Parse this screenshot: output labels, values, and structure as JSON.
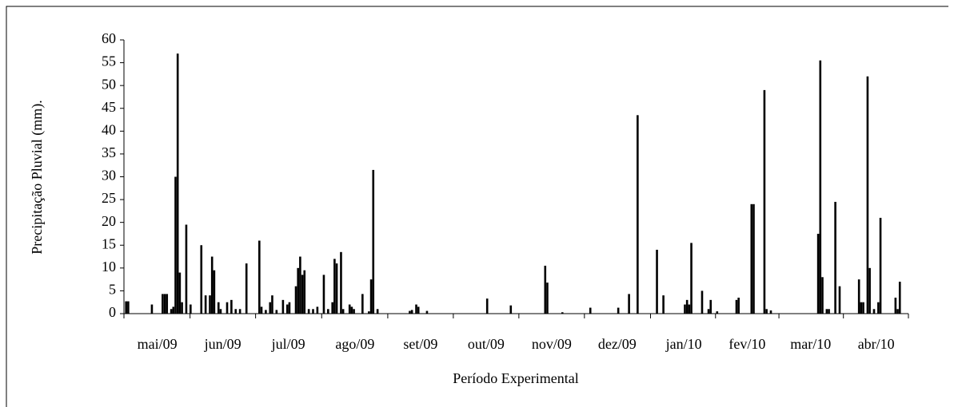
{
  "chart_data": {
    "type": "bar",
    "y_label": "Precipitação Pluvial (mm).",
    "x_label": "Período Experimental",
    "color": "#000000",
    "xlim": [
      0,
      365
    ],
    "xticks": [
      {
        "value": 15.5,
        "label": "mai/09"
      },
      {
        "value": 46,
        "label": "jun/09"
      },
      {
        "value": 76.5,
        "label": "jul/09"
      },
      {
        "value": 107.5,
        "label": "ago/09"
      },
      {
        "value": 138,
        "label": "set/09"
      },
      {
        "value": 168.5,
        "label": "out/09"
      },
      {
        "value": 199,
        "label": "nov/09"
      },
      {
        "value": 229.5,
        "label": "dez/09"
      },
      {
        "value": 260.5,
        "label": "jan/10"
      },
      {
        "value": 290,
        "label": "fev/10"
      },
      {
        "value": 319.5,
        "label": "mar/10"
      },
      {
        "value": 350,
        "label": "abr/10"
      }
    ],
    "ylim": [
      0,
      60
    ],
    "yticks": [
      0,
      5,
      10,
      15,
      20,
      25,
      30,
      35,
      40,
      45,
      50,
      55,
      60
    ],
    "x": [
      1,
      2,
      13,
      18,
      19,
      20,
      22,
      23,
      24,
      25,
      26,
      27,
      29,
      31,
      36,
      38,
      40,
      41,
      42,
      44,
      45,
      48,
      50,
      52,
      54,
      57,
      63,
      64,
      66,
      68,
      69,
      71,
      74,
      76,
      77,
      80,
      81,
      82,
      83,
      84,
      86,
      88,
      90,
      93,
      95,
      97,
      98,
      99,
      101,
      102,
      105,
      106,
      107,
      111,
      114,
      115,
      116,
      118,
      133,
      134,
      136,
      137,
      141,
      169,
      180,
      196,
      197,
      204,
      217,
      230,
      235,
      239,
      248,
      251,
      261,
      262,
      263,
      264,
      269,
      272,
      273,
      276,
      285,
      286,
      292,
      293,
      298,
      299,
      301,
      323,
      324,
      325,
      327,
      328,
      331,
      333,
      342,
      343,
      344,
      346,
      347,
      349,
      351,
      352,
      359,
      360,
      361
    ],
    "values": [
      2.7,
      2.7,
      2,
      4.3,
      4.3,
      4.3,
      1,
      1.5,
      30,
      57,
      9,
      2.5,
      19.5,
      2,
      15,
      4,
      4,
      12.5,
      9.5,
      2.5,
      1,
      2.5,
      3,
      1,
      1,
      11,
      16,
      1.5,
      0.8,
      2.5,
      4,
      0.8,
      3,
      2,
      2.5,
      6,
      10,
      12.5,
      8.5,
      9.5,
      1,
      1,
      1.5,
      8.5,
      1,
      2.5,
      12,
      11,
      13.5,
      1,
      2,
      1.5,
      1,
      4.3,
      0.5,
      7.5,
      31.5,
      1,
      0.6,
      0.8,
      2,
      1.5,
      0.6,
      3.3,
      1.8,
      10.5,
      6.8,
      0.3,
      1.3,
      1.3,
      4.3,
      43.5,
      14,
      4,
      2,
      3,
      2,
      15.5,
      5,
      1,
      3,
      0.5,
      3,
      3.5,
      24,
      24,
      49,
      1,
      0.7,
      17.5,
      55.5,
      8,
      1,
      1,
      24.5,
      6,
      7.5,
      2.5,
      2.5,
      52,
      10,
      1,
      2.5,
      21,
      3.5,
      1,
      7
    ]
  }
}
